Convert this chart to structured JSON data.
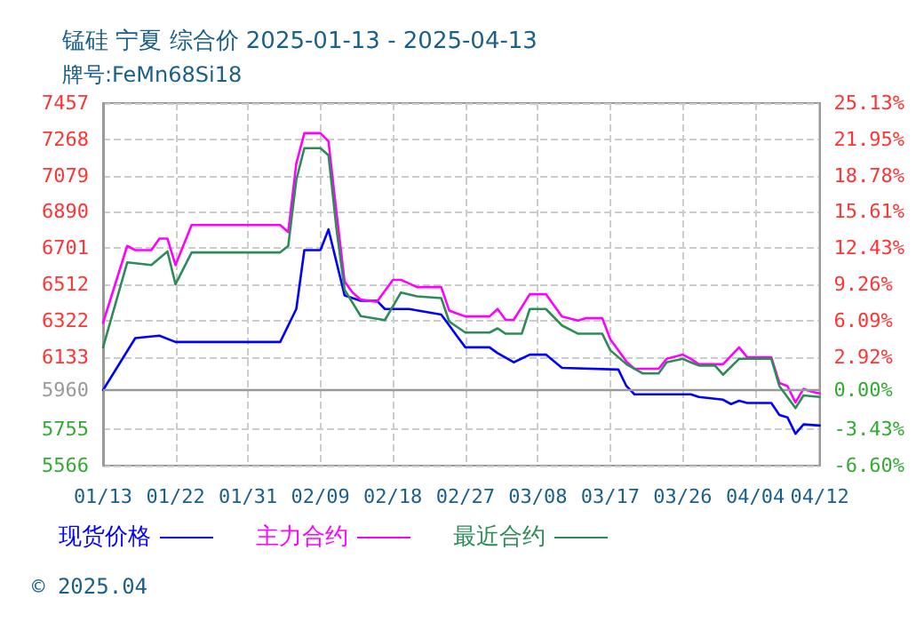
{
  "chart_data": {
    "type": "line",
    "title": "锰硅 宁夏 综合价 2025-01-13 - 2025-04-13",
    "subtitle": "牌号:FeMn68Si18",
    "annotations": [
      "© 2025.04"
    ],
    "xlim": [
      "2025-01-13",
      "2025-04-12"
    ],
    "xticks": [
      {
        "value": "2025-01-13",
        "label": "01/13"
      },
      {
        "value": "2025-01-22",
        "label": "01/22"
      },
      {
        "value": "2025-01-31",
        "label": "01/31"
      },
      {
        "value": "2025-02-09",
        "label": "02/09"
      },
      {
        "value": "2025-02-18",
        "label": "02/18"
      },
      {
        "value": "2025-02-27",
        "label": "02/27"
      },
      {
        "value": "2025-03-08",
        "label": "03/08"
      },
      {
        "value": "2025-03-17",
        "label": "03/17"
      },
      {
        "value": "2025-03-26",
        "label": "03/26"
      },
      {
        "value": "2025-04-04",
        "label": "04/04"
      },
      {
        "value": "2025-04-12",
        "label": "04/12"
      }
    ],
    "ylim": [
      5566,
      7457
    ],
    "yticks": [
      5566,
      5755,
      5960,
      6133,
      6322,
      6512,
      6701,
      6890,
      7079,
      7268,
      7457
    ],
    "y2lim": [
      -6.6,
      25.13
    ],
    "y2ticks": [
      {
        "value": -6.6,
        "label": "-6.60%"
      },
      {
        "value": -3.43,
        "label": "-3.43%"
      },
      {
        "value": 0,
        "label": "0.00%"
      },
      {
        "value": 2.92,
        "label": "2.92%"
      },
      {
        "value": 6.09,
        "label": "6.09%"
      },
      {
        "value": 9.26,
        "label": "9.26%"
      },
      {
        "value": 12.43,
        "label": "12.43%"
      },
      {
        "value": 15.61,
        "label": "15.61%"
      },
      {
        "value": 18.78,
        "label": "18.78%"
      },
      {
        "value": 21.95,
        "label": "21.95%"
      },
      {
        "value": 25.13,
        "label": "25.13%"
      }
    ],
    "ref_lines": [
      {
        "axis": "y",
        "value": 5960,
        "color": "#999999",
        "line_style": "solid"
      }
    ],
    "grid": true,
    "legend": "bottom",
    "marker": "none",
    "line_style": "solid",
    "series": [
      {
        "name": "现货价格",
        "color": "#0000ff",
        "x": [
          "2025-01-13",
          "2025-01-17",
          "2025-01-20",
          "2025-01-22",
          "2025-02-04",
          "2025-02-06",
          "2025-02-07",
          "2025-02-09",
          "2025-02-10",
          "2025-02-12",
          "2025-02-14",
          "2025-02-16",
          "2025-02-17",
          "2025-02-20",
          "2025-02-24",
          "2025-02-25",
          "2025-02-26",
          "2025-02-27",
          "2025-03-02",
          "2025-03-03",
          "2025-03-05",
          "2025-03-07",
          "2025-03-09",
          "2025-03-11",
          "2025-03-18",
          "2025-03-19",
          "2025-03-20",
          "2025-03-27",
          "2025-03-28",
          "2025-03-31",
          "2025-04-01",
          "2025-04-02",
          "2025-04-03",
          "2025-04-06",
          "2025-04-07",
          "2025-04-08",
          "2025-04-09",
          "2025-04-10",
          "2025-04-12"
        ],
        "values": [
          5960,
          6231,
          6244,
          6211,
          6211,
          6383,
          6690,
          6690,
          6798,
          6454,
          6426,
          6426,
          6383,
          6383,
          6354,
          6297,
          6239,
          6183,
          6183,
          6153,
          6105,
          6145,
          6145,
          6076,
          6067,
          5981,
          5938,
          5938,
          5924,
          5910,
          5887,
          5904,
          5893,
          5893,
          5830,
          5818,
          5732,
          5781,
          5775
        ]
      },
      {
        "name": "主力合约",
        "color": "#ff00ff",
        "x": [
          "2025-01-13",
          "2025-01-16",
          "2025-01-17",
          "2025-01-19",
          "2025-01-20",
          "2025-01-21",
          "2025-01-22",
          "2025-01-24",
          "2025-02-04",
          "2025-02-05",
          "2025-02-06",
          "2025-02-07",
          "2025-02-09",
          "2025-02-10",
          "2025-02-11",
          "2025-02-12",
          "2025-02-13",
          "2025-02-14",
          "2025-02-16",
          "2025-02-18",
          "2025-02-19",
          "2025-02-21",
          "2025-02-24",
          "2025-02-25",
          "2025-02-27",
          "2025-03-02",
          "2025-03-03",
          "2025-03-04",
          "2025-03-05",
          "2025-03-07",
          "2025-03-09",
          "2025-03-11",
          "2025-03-13",
          "2025-03-14",
          "2025-03-16",
          "2025-03-17",
          "2025-03-19",
          "2025-03-20",
          "2025-03-23",
          "2025-03-24",
          "2025-03-26",
          "2025-03-27",
          "2025-03-28",
          "2025-03-31",
          "2025-04-02",
          "2025-04-03",
          "2025-04-06",
          "2025-04-07",
          "2025-04-08",
          "2025-04-09",
          "2025-04-10",
          "2025-04-11",
          "2025-04-12"
        ],
        "values": [
          6311,
          6712,
          6690,
          6690,
          6750,
          6750,
          6612,
          6821,
          6821,
          6784,
          7142,
          7300,
          7300,
          7257,
          6884,
          6526,
          6469,
          6432,
          6420,
          6535,
          6535,
          6497,
          6497,
          6374,
          6344,
          6344,
          6383,
          6326,
          6326,
          6460,
          6460,
          6344,
          6323,
          6335,
          6335,
          6225,
          6109,
          6071,
          6071,
          6123,
          6145,
          6123,
          6095,
          6095,
          6183,
          6131,
          6131,
          5997,
          5981,
          5896,
          5966,
          5952,
          5943
        ]
      },
      {
        "name": "最近合约",
        "color": "#2e8b57",
        "x": [
          "2025-01-13",
          "2025-01-16",
          "2025-01-19",
          "2025-01-21",
          "2025-01-22",
          "2025-01-24",
          "2025-02-04",
          "2025-02-05",
          "2025-02-06",
          "2025-02-07",
          "2025-02-09",
          "2025-02-10",
          "2025-02-11",
          "2025-02-12",
          "2025-02-14",
          "2025-02-17",
          "2025-02-19",
          "2025-02-21",
          "2025-02-24",
          "2025-02-25",
          "2025-02-27",
          "2025-03-02",
          "2025-03-03",
          "2025-03-04",
          "2025-03-06",
          "2025-03-07",
          "2025-03-09",
          "2025-03-11",
          "2025-03-13",
          "2025-03-16",
          "2025-03-17",
          "2025-03-19",
          "2025-03-21",
          "2025-03-23",
          "2025-03-24",
          "2025-03-26",
          "2025-03-27",
          "2025-03-28",
          "2025-03-30",
          "2025-03-31",
          "2025-04-02",
          "2025-04-06",
          "2025-04-07",
          "2025-04-09",
          "2025-04-10",
          "2025-04-12"
        ],
        "values": [
          6183,
          6626,
          6612,
          6683,
          6512,
          6678,
          6678,
          6712,
          7056,
          7222,
          7222,
          7185,
          6798,
          6483,
          6346,
          6325,
          6469,
          6449,
          6440,
          6317,
          6260,
          6260,
          6282,
          6254,
          6254,
          6383,
          6383,
          6297,
          6254,
          6254,
          6168,
          6095,
          6047,
          6047,
          6105,
          6123,
          6105,
          6088,
          6088,
          6040,
          6123,
          6123,
          5981,
          5866,
          5932,
          5924
        ]
      }
    ]
  }
}
